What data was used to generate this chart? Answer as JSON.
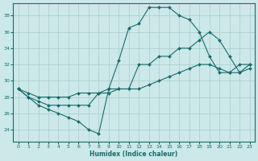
{
  "xlabel": "Humidex (Indice chaleur)",
  "bg_color": "#cce8e8",
  "grid_color": "#aacccc",
  "line_color": "#1a6b6b",
  "marker": "D",
  "markersize": 2.0,
  "linewidth": 0.8,
  "xlim": [
    -0.5,
    23.5
  ],
  "ylim": [
    22.5,
    39.5
  ],
  "yticks": [
    24,
    26,
    28,
    30,
    32,
    34,
    36,
    38
  ],
  "xticks": [
    0,
    1,
    2,
    3,
    4,
    5,
    6,
    7,
    8,
    9,
    10,
    11,
    12,
    13,
    14,
    15,
    16,
    17,
    18,
    19,
    20,
    21,
    22,
    23
  ],
  "series1": [
    29,
    28,
    27,
    26.5,
    26,
    25.5,
    25,
    24,
    23.5,
    29,
    32.5,
    36.5,
    37,
    39,
    39,
    39,
    38,
    37.5,
    36,
    33,
    31,
    31,
    32,
    32
  ],
  "series2": [
    29,
    28,
    27.5,
    27,
    27,
    27,
    27,
    27,
    28.5,
    28.5,
    29,
    29,
    32,
    32,
    33,
    33,
    34,
    34,
    35,
    36,
    35,
    33,
    31,
    31.5
  ],
  "series3": [
    29,
    28.5,
    28,
    28,
    28,
    28,
    28.5,
    28.5,
    28.5,
    29,
    29,
    29,
    29,
    29.5,
    30,
    30.5,
    31,
    31.5,
    32,
    32,
    31.5,
    31,
    31,
    32
  ]
}
